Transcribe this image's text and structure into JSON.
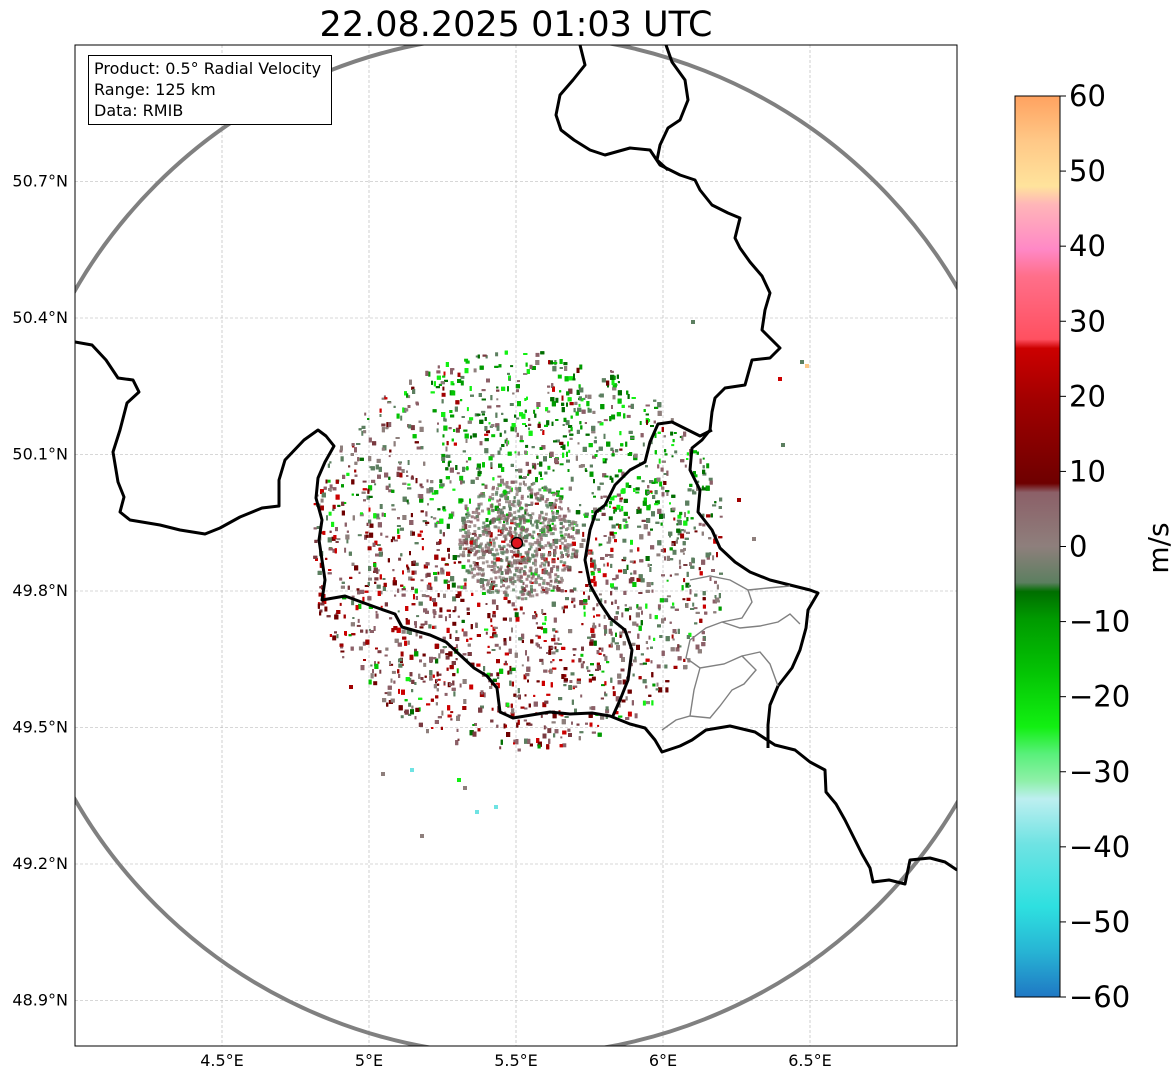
{
  "title": "22.08.2025 01:03 UTC",
  "info_box": {
    "product": "Product: 0.5° Radial Velocity",
    "range": "Range: 125 km",
    "data": "Data: RMIB"
  },
  "map": {
    "lon_range": [
      4.0,
      7.0
    ],
    "lat_range": [
      48.8,
      51.0
    ],
    "radar_site": {
      "lon": 5.505,
      "lat": 49.914
    },
    "x_ticks": [
      {
        "value": 4.5,
        "label": "4.5°E"
      },
      {
        "value": 5.0,
        "label": "5°E"
      },
      {
        "value": 5.5,
        "label": "5.5°E"
      },
      {
        "value": 6.0,
        "label": "6°E"
      },
      {
        "value": 6.5,
        "label": "6.5°E"
      }
    ],
    "y_ticks": [
      {
        "value": 48.9,
        "label": "48.9°N"
      },
      {
        "value": 49.2,
        "label": "49.2°N"
      },
      {
        "value": 49.5,
        "label": "49.5°N"
      },
      {
        "value": 49.8,
        "label": "49.8°N"
      },
      {
        "value": 50.1,
        "label": "50.1°N"
      },
      {
        "value": 50.4,
        "label": "50.4°N"
      },
      {
        "value": 50.7,
        "label": "50.7°N"
      }
    ]
  },
  "colorbar": {
    "label": "m/s",
    "min": -60,
    "max": 60,
    "ticks": [
      "60",
      "50",
      "40",
      "30",
      "20",
      "10",
      "0",
      "−10",
      "−20",
      "−30",
      "−40",
      "−50",
      "−60"
    ],
    "tick_values": [
      60,
      50,
      40,
      30,
      20,
      10,
      0,
      -10,
      -20,
      -30,
      -40,
      -50,
      -60
    ],
    "colors": {
      "neg60": "#1f78c4",
      "neg55": "#27b4d4",
      "neg50": "#2ee0e0",
      "neg45": "#6fe3e3",
      "neg40": "#a0ecec",
      "neg35": "#bdeff0",
      "neg30": "#8ef0a8",
      "neg28": "#58f07a",
      "neg25": "#12f012",
      "neg20": "#04c404",
      "neg15": "#009a00",
      "neg10": "#006e00",
      "neg5": "#5c7f60",
      "zero": "#8e7f7c",
      "pos3": "#8c6068",
      "pos8": "#7a3a40",
      "pos10": "#6e0000",
      "pos15": "#a00000",
      "pos20": "#cc0000",
      "pos25": "#f00000",
      "pos30": "#ff5060",
      "pos35": "#ff6f8a",
      "pos40": "#ff88c6",
      "pos45": "#ffb6b8",
      "pos48": "#ffe39c",
      "pos52": "#ffc887",
      "pos57": "#ffa260"
    }
  }
}
